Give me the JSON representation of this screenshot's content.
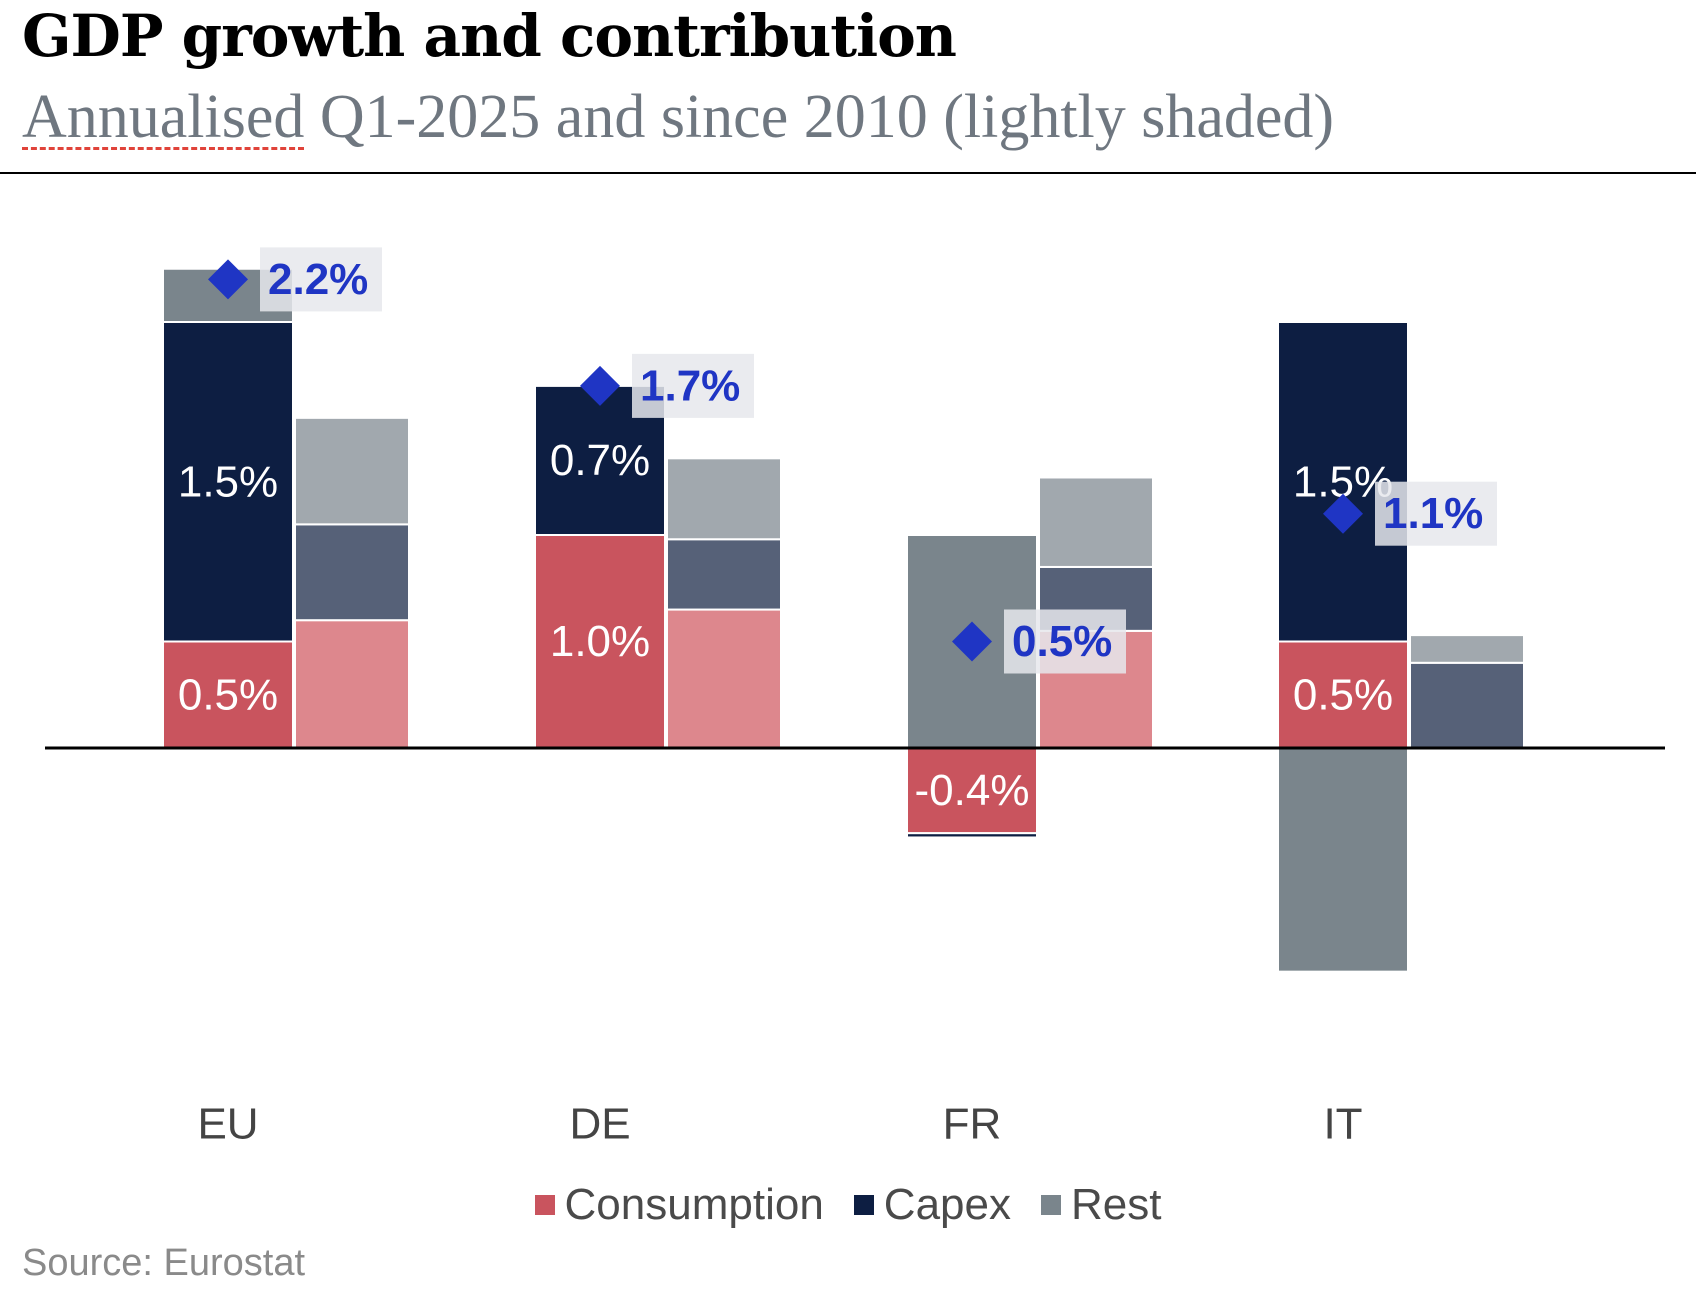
{
  "header": {
    "title": "GDP growth and contribution",
    "subtitle_word": "Annualised",
    "subtitle_rest": " Q1-2025 and since 2010 (lightly shaded)"
  },
  "chart_data": {
    "type": "bar",
    "stacked": true,
    "categories": [
      "EU",
      "DE",
      "FR",
      "IT"
    ],
    "title": "GDP growth and contribution",
    "subtitle": "Annualised Q1-2025 and since 2010 (lightly shaded)",
    "ylim": [
      -1.1,
      2.8
    ],
    "series_q1_2025": [
      {
        "name": "Consumption",
        "values": [
          0.5,
          1.0,
          -0.4,
          0.5
        ],
        "labels": [
          "0.5%",
          "1.0%",
          "-0.4%",
          "0.5%"
        ]
      },
      {
        "name": "Capex",
        "values": [
          1.5,
          0.7,
          -0.02,
          1.5
        ],
        "labels": [
          "1.5%",
          "0.7%",
          "",
          "1.5%"
        ]
      },
      {
        "name": "Rest",
        "values": [
          0.25,
          0.0,
          1.0,
          -1.05
        ],
        "labels": [
          "",
          "",
          "",
          ""
        ]
      }
    ],
    "series_since_2010": [
      {
        "name": "Consumption",
        "values": [
          0.6,
          0.65,
          0.55,
          0.0
        ]
      },
      {
        "name": "Capex",
        "values": [
          0.45,
          0.33,
          0.3,
          0.4
        ]
      },
      {
        "name": "Rest",
        "values": [
          0.5,
          0.38,
          0.42,
          0.13
        ]
      }
    ],
    "gdp_growth": {
      "values": [
        2.2,
        1.7,
        0.5,
        1.1
      ],
      "labels": [
        "2.2%",
        "1.7%",
        "0.5%",
        "1.1%"
      ]
    },
    "colors": {
      "Consumption": "#c9545e",
      "Capex": "#0d1e42",
      "Rest": "#7a858c",
      "Consumption_light": "#dd878d",
      "Capex_light": "#566178",
      "Rest_light": "#a1a8ae",
      "marker": "#1f35c4"
    }
  },
  "legend": {
    "items": [
      {
        "label": "Consumption",
        "color": "#c9545e"
      },
      {
        "label": "Capex",
        "color": "#0d1e42"
      },
      {
        "label": "Rest",
        "color": "#7a858c"
      }
    ]
  },
  "source": "Source: Eurostat"
}
